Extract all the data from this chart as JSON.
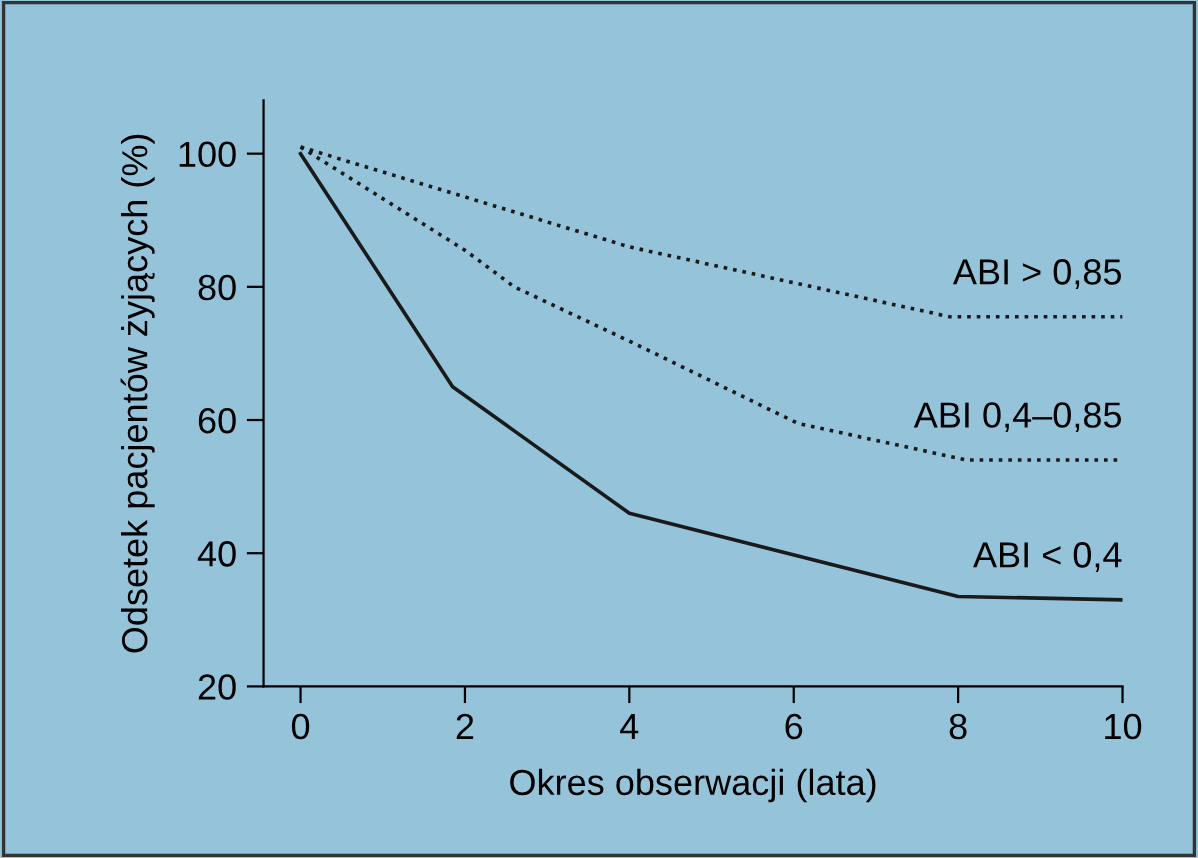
{
  "chart_data": {
    "type": "line",
    "xlabel": "Okres obserwacji (lata)",
    "ylabel": "Odsetek pacjentów żyjących (%)",
    "xlim": [
      -0.45,
      10
    ],
    "ylim": [
      20,
      108
    ],
    "xticks": [
      0,
      2,
      4,
      6,
      8,
      10
    ],
    "yticks": [
      20,
      40,
      60,
      80,
      100
    ],
    "grid": false,
    "legend": false,
    "series": [
      {
        "name": "ABI > 0,85",
        "color": "#1a1a1a",
        "line_style": "dotted",
        "x": [
          0,
          4,
          7.9,
          10
        ],
        "values": [
          101,
          86,
          75.5,
          75.5
        ]
      },
      {
        "name": "ABI 0,4–0,85",
        "color": "#1a1a1a",
        "line_style": "dotted",
        "x": [
          0,
          2,
          2.6,
          4.06,
          6.05,
          8.1,
          10
        ],
        "values": [
          101,
          85.5,
          80,
          71.5,
          59.5,
          54,
          54
        ]
      },
      {
        "name": "ABI < 0,4",
        "color": "#1a1a1a",
        "line_style": "solid",
        "x": [
          0,
          1.85,
          4,
          8,
          10
        ],
        "values": [
          100,
          65,
          46,
          33.5,
          33
        ]
      }
    ]
  }
}
